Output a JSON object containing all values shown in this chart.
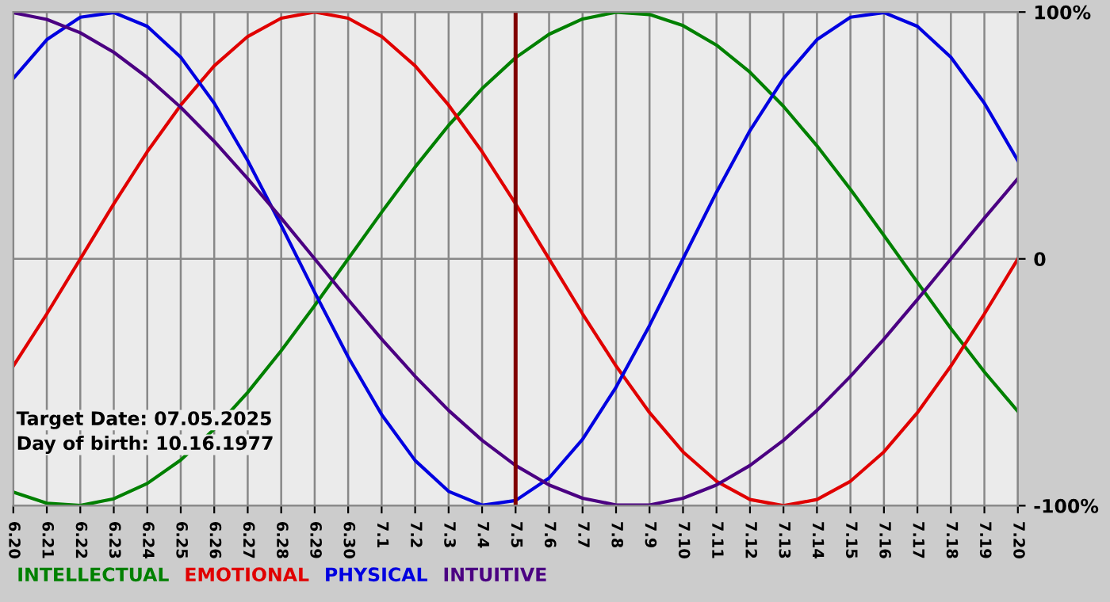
{
  "chart_data": {
    "type": "line",
    "categories": [
      "6.20",
      "6.21",
      "6.22",
      "6.23",
      "6.24",
      "6.25",
      "6.26",
      "6.27",
      "6.28",
      "6.29",
      "6.30",
      "7.1",
      "7.2",
      "7.3",
      "7.4",
      "7.5",
      "7.6",
      "7.7",
      "7.8",
      "7.9",
      "7.10",
      "7.11",
      "7.12",
      "7.13",
      "7.14",
      "7.15",
      "7.16",
      "7.17",
      "7.18",
      "7.19",
      "7.20"
    ],
    "series": [
      {
        "name": "INTELLECTUAL",
        "color": "#008000",
        "values": [
          -94.5,
          -99,
          -99.9,
          -97.2,
          -91,
          -81.5,
          -69,
          -54.1,
          -37.2,
          -18.9,
          0,
          18.9,
          37.2,
          54.1,
          69,
          81.5,
          91,
          97.2,
          99.9,
          99,
          94.5,
          86.6,
          75.6,
          61.8,
          45.8,
          28.2,
          9.5,
          -9.5,
          -28.2,
          -45.8,
          -61.8
        ]
      },
      {
        "name": "EMOTIONAL",
        "color": "#e00000",
        "values": [
          -43.4,
          -22.3,
          0,
          22.3,
          43.4,
          62.3,
          78.2,
          90.1,
          97.5,
          100,
          97.5,
          90.1,
          78.2,
          62.3,
          43.4,
          22.3,
          0,
          -22.3,
          -43.4,
          -62.3,
          -78.2,
          -90.1,
          -97.5,
          -100,
          -97.5,
          -90.1,
          -78.2,
          -62.3,
          -43.4,
          -22.3,
          0
        ]
      },
      {
        "name": "PHYSICAL",
        "color": "#0000e0",
        "values": [
          73.1,
          88.8,
          97.9,
          99.8,
          94.2,
          81.7,
          63.1,
          39.8,
          13.6,
          -13.6,
          -39.8,
          -63.1,
          -81.7,
          -94.2,
          -99.8,
          -97.9,
          -88.8,
          -73.1,
          -52,
          -27,
          0,
          27,
          52,
          73.1,
          88.8,
          97.9,
          99.8,
          94.2,
          81.7,
          63.1,
          39.8
        ]
      },
      {
        "name": "INTUITIVE",
        "color": "#4b0082",
        "values": [
          99.7,
          97,
          91.6,
          83.7,
          73.5,
          61.4,
          47.6,
          32.5,
          16.5,
          0,
          -16.5,
          -32.5,
          -47.6,
          -61.4,
          -73.5,
          -83.7,
          -91.6,
          -97,
          -99.7,
          -99.7,
          -97,
          -91.6,
          -83.7,
          -73.5,
          -61.4,
          -47.6,
          -32.5,
          -16.5,
          0,
          16.5,
          32.5
        ]
      }
    ],
    "ylim": [
      -100,
      100
    ],
    "yticks": [
      {
        "value": 100,
        "label": "100%"
      },
      0,
      {
        "value": -100,
        "label": "-100%"
      }
    ],
    "grid": true,
    "legend": "bottom left",
    "ref_lines": [
      {
        "axis": "x",
        "value": "7.5",
        "color": "#800000"
      }
    ],
    "annotations": [
      "Target Date: 07.05.2025",
      "Day of birth: 10.16.1977"
    ]
  }
}
